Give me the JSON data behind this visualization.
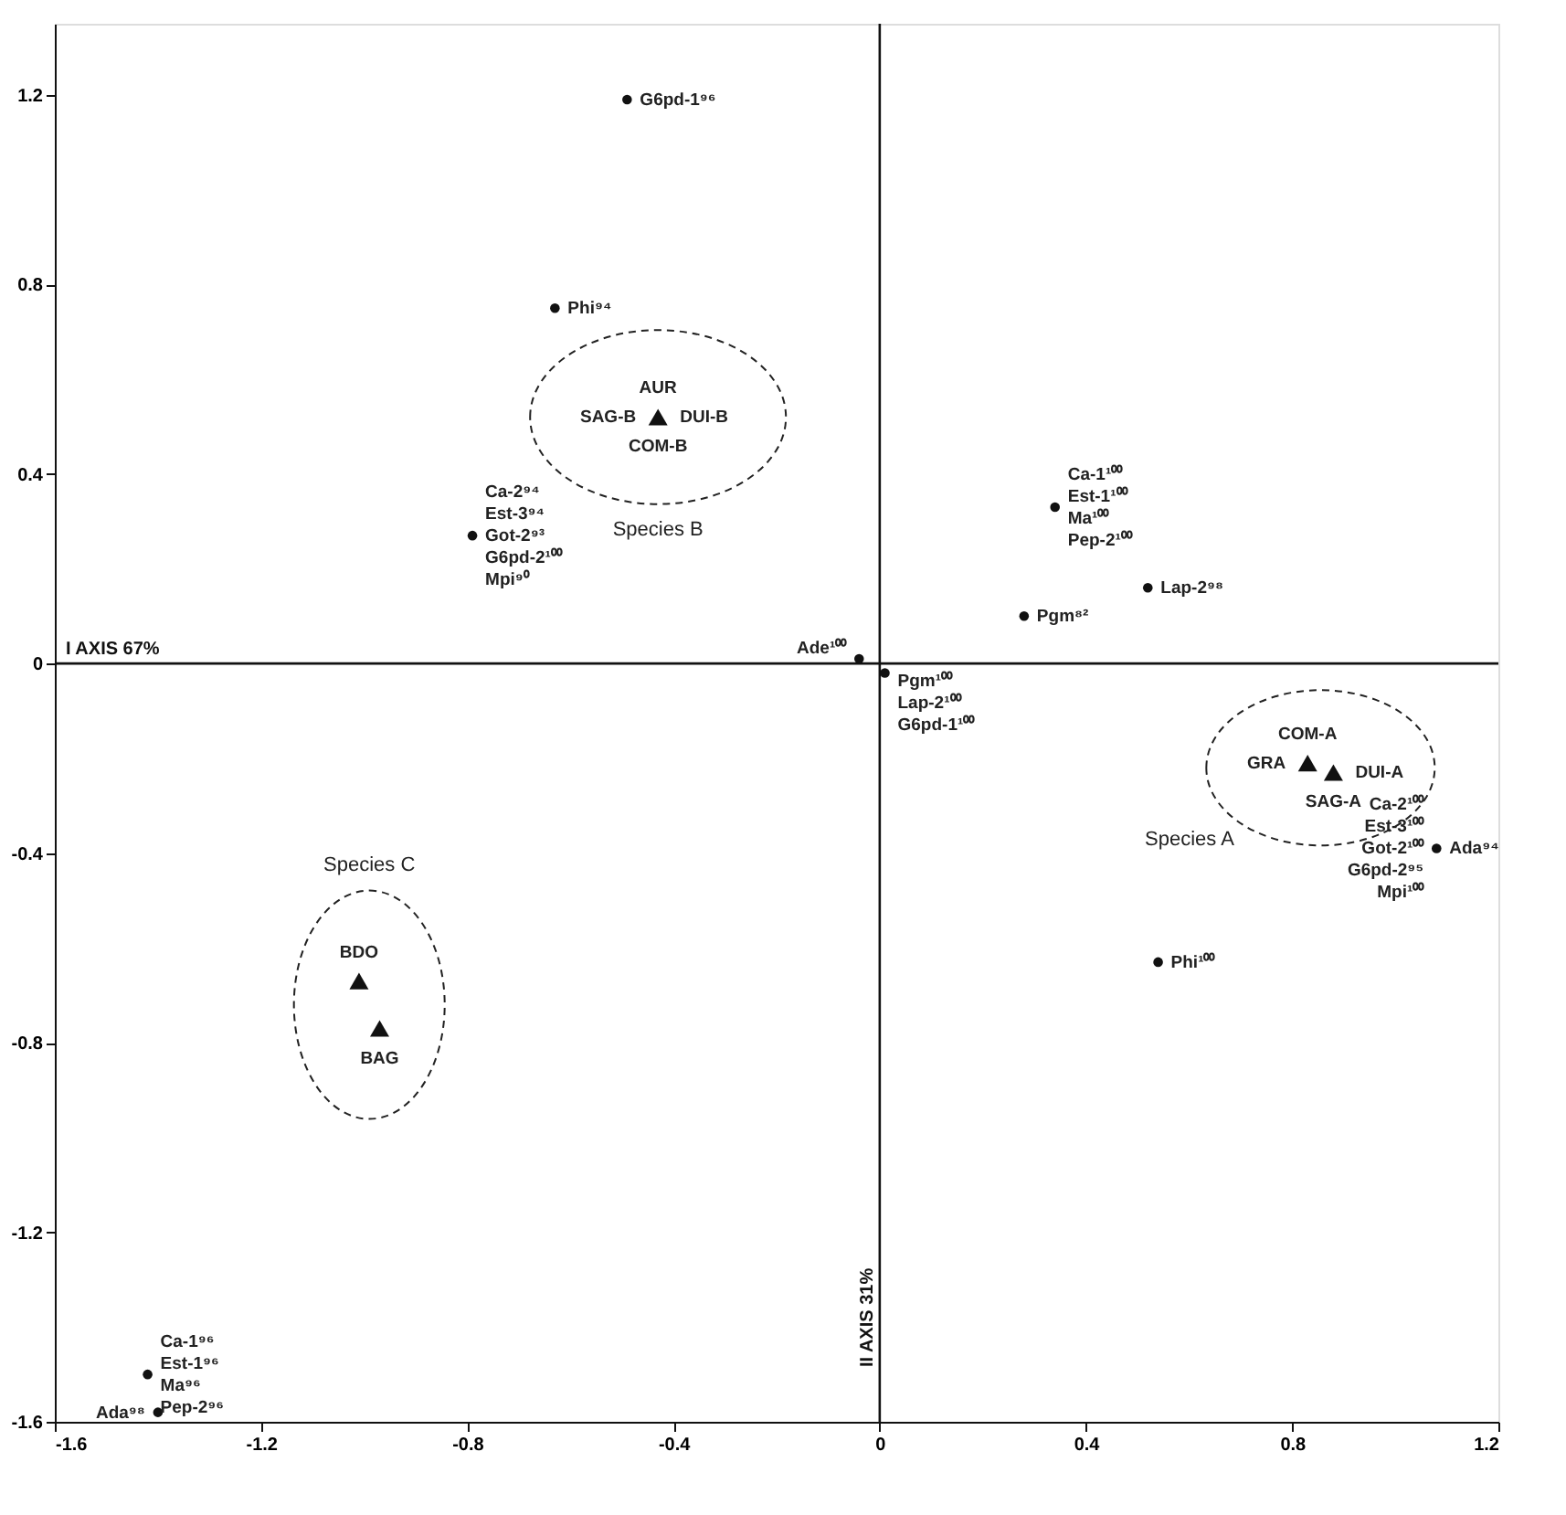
{
  "chart_data": {
    "type": "scatter",
    "xlim": [
      -1.6,
      1.2
    ],
    "ylim": [
      -1.6,
      1.35
    ],
    "xticks": [
      -1.6,
      -1.2,
      -0.8,
      -0.4,
      0,
      0.4,
      0.8,
      1.2
    ],
    "yticks": [
      -1.6,
      -1.2,
      -0.8,
      -0.4,
      0,
      0.4,
      0.8,
      1.2
    ],
    "grid": false,
    "series": [
      {
        "marker": "triangle",
        "color": "#111111",
        "x": [
          -0.43
        ],
        "values": [
          0.52
        ]
      },
      {
        "marker": "triangle",
        "color": "#111111",
        "x": [
          0.83,
          0.88
        ],
        "values": [
          -0.21,
          -0.23
        ]
      },
      {
        "marker": "triangle",
        "color": "#111111",
        "x": [
          -1.01,
          -0.97
        ],
        "values": [
          -0.67,
          -0.77
        ]
      },
      {
        "marker": "circle",
        "color": "#111111",
        "x": [
          -0.49,
          -0.63,
          -0.79,
          -0.04,
          0.01,
          0.28,
          0.34,
          0.52,
          1.08,
          0.54,
          -1.42,
          -1.4
        ],
        "values": [
          1.19,
          0.75,
          0.27,
          0.01,
          -0.02,
          0.1,
          0.33,
          0.16,
          -0.39,
          -0.63,
          -1.5,
          -1.58
        ]
      }
    ],
    "ref_lines": [
      {
        "axis": "x",
        "value": 0,
        "label": "II AXIS 31%",
        "color": "#111111",
        "line_style": "solid"
      },
      {
        "axis": "y",
        "value": 0,
        "label": "I AXIS 67%",
        "color": "#111111",
        "line_style": "solid"
      }
    ],
    "annotations": [
      "Species B",
      "Species A",
      "Species C",
      {
        "text": "AUR",
        "x": -0.43,
        "y": 0.52
      },
      {
        "text": "SAG-B",
        "x": -0.43,
        "y": 0.52
      },
      {
        "text": "DUI-B",
        "x": -0.43,
        "y": 0.52
      },
      {
        "text": "COM-B",
        "x": -0.43,
        "y": 0.52
      },
      {
        "text": "GRA",
        "x": 0.83,
        "y": -0.21
      },
      {
        "text": "COM-A",
        "x": 0.83,
        "y": -0.21
      },
      {
        "text": "DUI-A",
        "x": 0.88,
        "y": -0.23
      },
      {
        "text": "SAG-A",
        "x": 0.88,
        "y": -0.23
      },
      {
        "text": "BDO",
        "x": -1.01,
        "y": -0.67
      },
      {
        "text": "BAG",
        "x": -0.97,
        "y": -0.77
      },
      {
        "text": "G6pd-1⁹⁶",
        "x": -0.49,
        "y": 1.19
      },
      {
        "text": "Phi⁹⁴",
        "x": -0.63,
        "y": 0.75
      },
      {
        "text": "Ca-2⁹⁴",
        "x": -0.79,
        "y": 0.27
      },
      {
        "text": "Est-3⁹⁴",
        "x": -0.79,
        "y": 0.27
      },
      {
        "text": "Got-2⁹³",
        "x": -0.79,
        "y": 0.27
      },
      {
        "text": "G6pd-2¹⁰⁰",
        "x": -0.79,
        "y": 0.27
      },
      {
        "text": "Mpi⁹⁰",
        "x": -0.79,
        "y": 0.27
      },
      {
        "text": "Ade¹⁰⁰",
        "x": -0.04,
        "y": 0.01
      },
      {
        "text": "Pgm¹⁰⁰",
        "x": 0.01,
        "y": -0.02
      },
      {
        "text": "Lap-2¹⁰⁰",
        "x": 0.01,
        "y": -0.02
      },
      {
        "text": "G6pd-1¹⁰⁰",
        "x": 0.01,
        "y": -0.02
      },
      {
        "text": "Pgm⁸²",
        "x": 0.28,
        "y": 0.1
      },
      {
        "text": "Ca-1¹⁰⁰",
        "x": 0.34,
        "y": 0.33
      },
      {
        "text": "Est-1¹⁰⁰",
        "x": 0.34,
        "y": 0.33
      },
      {
        "text": "Ma¹⁰⁰",
        "x": 0.34,
        "y": 0.33
      },
      {
        "text": "Pep-2¹⁰⁰",
        "x": 0.34,
        "y": 0.33
      },
      {
        "text": "Lap-2⁹⁸",
        "x": 0.52,
        "y": 0.16
      },
      {
        "text": "Ada⁹⁴",
        "x": 1.08,
        "y": -0.39
      },
      {
        "text": "Ca-2¹⁰⁰",
        "x": 1.08,
        "y": -0.39
      },
      {
        "text": "Est-3¹⁰⁰",
        "x": 1.08,
        "y": -0.39
      },
      {
        "text": "Got-2¹⁰⁰",
        "x": 1.08,
        "y": -0.39
      },
      {
        "text": "G6pd-2⁹⁵",
        "x": 1.08,
        "y": -0.39
      },
      {
        "text": "Mpi¹⁰⁰",
        "x": 1.08,
        "y": -0.39
      },
      {
        "text": "Phi¹⁰⁰",
        "x": 0.54,
        "y": -0.63
      },
      {
        "text": "Ca-1⁹⁶",
        "x": -1.42,
        "y": -1.5
      },
      {
        "text": "Est-1⁹⁶",
        "x": -1.42,
        "y": -1.5
      },
      {
        "text": "Ma⁹⁶",
        "x": -1.42,
        "y": -1.5
      },
      {
        "text": "Pep-2⁹⁶",
        "x": -1.42,
        "y": -1.5
      },
      {
        "text": "Ada⁹⁸",
        "x": -1.4,
        "y": -1.58
      }
    ]
  }
}
